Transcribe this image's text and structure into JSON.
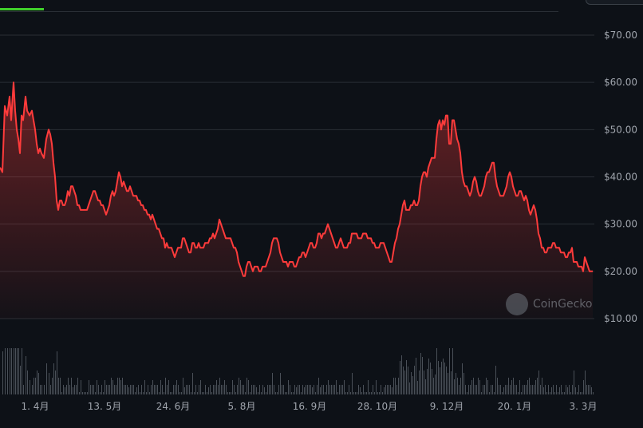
{
  "watermark": {
    "text": "CoinGecko",
    "icon": "coingecko-logo-icon"
  },
  "colors": {
    "line": "#ff3b3b",
    "background": "#0d1117",
    "grid": "#2a2f36",
    "volume": "#4a5058",
    "active_tab": "#3fcf2b"
  },
  "chart_data": {
    "type": "area",
    "ylim": [
      10,
      70
    ],
    "y_ticks": [
      "$70.00",
      "$60.00",
      "$50.00",
      "$40.00",
      "$30.00",
      "$20.00",
      "$10.00"
    ],
    "y_tick_values": [
      70,
      60,
      50,
      40,
      30,
      20,
      10
    ],
    "x_ticks": [
      "1. 4月",
      "13. 5月",
      "24. 6月",
      "5. 8月",
      "16. 9月",
      "28. 10月",
      "9. 12月",
      "20. 1月",
      "3. 3月"
    ],
    "grid": true,
    "price_series": [
      [
        0,
        42
      ],
      [
        3,
        41
      ],
      [
        6,
        55
      ],
      [
        9,
        53
      ],
      [
        12,
        57
      ],
      [
        14,
        52
      ],
      [
        17,
        60
      ],
      [
        19,
        54
      ],
      [
        21,
        50
      ],
      [
        23,
        48
      ],
      [
        25,
        45
      ],
      [
        27,
        53
      ],
      [
        29,
        52
      ],
      [
        32,
        57
      ],
      [
        34,
        54
      ],
      [
        37,
        53
      ],
      [
        40,
        54
      ],
      [
        42,
        52
      ],
      [
        44,
        50
      ],
      [
        46,
        47
      ],
      [
        48,
        45
      ],
      [
        50,
        46
      ],
      [
        52,
        45
      ],
      [
        55,
        44
      ],
      [
        58,
        48
      ],
      [
        61,
        50
      ],
      [
        63,
        49
      ],
      [
        65,
        47
      ],
      [
        67,
        43
      ],
      [
        69,
        40
      ],
      [
        71,
        35
      ],
      [
        73,
        33
      ],
      [
        75,
        35
      ],
      [
        77,
        35
      ],
      [
        79,
        34
      ],
      [
        81,
        34
      ],
      [
        83,
        35
      ],
      [
        85,
        37
      ],
      [
        87,
        36
      ],
      [
        89,
        38
      ],
      [
        91,
        38
      ],
      [
        93,
        37
      ],
      [
        95,
        36
      ],
      [
        97,
        34
      ],
      [
        99,
        34
      ],
      [
        101,
        33
      ],
      [
        103,
        33
      ],
      [
        105,
        33
      ],
      [
        107,
        33
      ],
      [
        109,
        33
      ],
      [
        111,
        34
      ],
      [
        113,
        35
      ],
      [
        115,
        36
      ],
      [
        117,
        37
      ],
      [
        119,
        37
      ],
      [
        121,
        36
      ],
      [
        123,
        35
      ],
      [
        125,
        35
      ],
      [
        127,
        34
      ],
      [
        129,
        34
      ],
      [
        131,
        33
      ],
      [
        133,
        32
      ],
      [
        135,
        33
      ],
      [
        137,
        34
      ],
      [
        139,
        36
      ],
      [
        141,
        37
      ],
      [
        143,
        36
      ],
      [
        145,
        37
      ],
      [
        147,
        39
      ],
      [
        149,
        41
      ],
      [
        151,
        40
      ],
      [
        153,
        38
      ],
      [
        155,
        39
      ],
      [
        157,
        38
      ],
      [
        159,
        37
      ],
      [
        161,
        37
      ],
      [
        163,
        38
      ],
      [
        165,
        37
      ],
      [
        167,
        36
      ],
      [
        169,
        36
      ],
      [
        171,
        36
      ],
      [
        173,
        35
      ],
      [
        175,
        35
      ],
      [
        177,
        34
      ],
      [
        179,
        34
      ],
      [
        181,
        33
      ],
      [
        183,
        33
      ],
      [
        185,
        32
      ],
      [
        187,
        32
      ],
      [
        189,
        31
      ],
      [
        191,
        32
      ],
      [
        193,
        31
      ],
      [
        195,
        30
      ],
      [
        197,
        29
      ],
      [
        199,
        29
      ],
      [
        201,
        28
      ],
      [
        203,
        27
      ],
      [
        205,
        27
      ],
      [
        207,
        25
      ],
      [
        209,
        26
      ],
      [
        211,
        25
      ],
      [
        213,
        25
      ],
      [
        215,
        25
      ],
      [
        217,
        24
      ],
      [
        219,
        23
      ],
      [
        221,
        24
      ],
      [
        223,
        25
      ],
      [
        225,
        25
      ],
      [
        227,
        25
      ],
      [
        229,
        27
      ],
      [
        231,
        27
      ],
      [
        233,
        26
      ],
      [
        235,
        25
      ],
      [
        237,
        24
      ],
      [
        239,
        24
      ],
      [
        241,
        26
      ],
      [
        243,
        26
      ],
      [
        245,
        25
      ],
      [
        247,
        25
      ],
      [
        249,
        26
      ],
      [
        251,
        25
      ],
      [
        253,
        25
      ],
      [
        255,
        25
      ],
      [
        257,
        26
      ],
      [
        259,
        26
      ],
      [
        261,
        26
      ],
      [
        263,
        27
      ],
      [
        265,
        27
      ],
      [
        267,
        28
      ],
      [
        269,
        27
      ],
      [
        271,
        28
      ],
      [
        273,
        29
      ],
      [
        275,
        31
      ],
      [
        277,
        30
      ],
      [
        279,
        29
      ],
      [
        281,
        28
      ],
      [
        283,
        27
      ],
      [
        285,
        27
      ],
      [
        287,
        27
      ],
      [
        289,
        27
      ],
      [
        291,
        26
      ],
      [
        293,
        25
      ],
      [
        295,
        25
      ],
      [
        297,
        24
      ],
      [
        299,
        22
      ],
      [
        301,
        21
      ],
      [
        303,
        20
      ],
      [
        305,
        19
      ],
      [
        307,
        19
      ],
      [
        309,
        21
      ],
      [
        311,
        22
      ],
      [
        313,
        22
      ],
      [
        315,
        21
      ],
      [
        317,
        20
      ],
      [
        319,
        21
      ],
      [
        321,
        21
      ],
      [
        323,
        21
      ],
      [
        325,
        20
      ],
      [
        327,
        20
      ],
      [
        329,
        21
      ],
      [
        331,
        21
      ],
      [
        333,
        21
      ],
      [
        335,
        22
      ],
      [
        337,
        23
      ],
      [
        339,
        24
      ],
      [
        341,
        26
      ],
      [
        343,
        27
      ],
      [
        345,
        27
      ],
      [
        347,
        27
      ],
      [
        349,
        26
      ],
      [
        351,
        24
      ],
      [
        353,
        23
      ],
      [
        355,
        22
      ],
      [
        357,
        22
      ],
      [
        359,
        22
      ],
      [
        361,
        21
      ],
      [
        363,
        22
      ],
      [
        365,
        22
      ],
      [
        367,
        22
      ],
      [
        369,
        21
      ],
      [
        371,
        21
      ],
      [
        373,
        22
      ],
      [
        375,
        23
      ],
      [
        377,
        23
      ],
      [
        379,
        24
      ],
      [
        381,
        24
      ],
      [
        383,
        23
      ],
      [
        385,
        24
      ],
      [
        387,
        25
      ],
      [
        389,
        26
      ],
      [
        391,
        26
      ],
      [
        393,
        25
      ],
      [
        395,
        25
      ],
      [
        397,
        26
      ],
      [
        399,
        28
      ],
      [
        401,
        28
      ],
      [
        403,
        27
      ],
      [
        405,
        28
      ],
      [
        407,
        28
      ],
      [
        409,
        29
      ],
      [
        411,
        30
      ],
      [
        413,
        29
      ],
      [
        415,
        28
      ],
      [
        417,
        27
      ],
      [
        419,
        26
      ],
      [
        421,
        25
      ],
      [
        423,
        25
      ],
      [
        425,
        26
      ],
      [
        427,
        27
      ],
      [
        429,
        26
      ],
      [
        431,
        25
      ],
      [
        433,
        25
      ],
      [
        435,
        25
      ],
      [
        437,
        26
      ],
      [
        439,
        26
      ],
      [
        441,
        28
      ],
      [
        443,
        28
      ],
      [
        445,
        28
      ],
      [
        447,
        28
      ],
      [
        449,
        27
      ],
      [
        451,
        27
      ],
      [
        453,
        27
      ],
      [
        455,
        28
      ],
      [
        457,
        28
      ],
      [
        459,
        28
      ],
      [
        461,
        27
      ],
      [
        463,
        27
      ],
      [
        465,
        27
      ],
      [
        467,
        26
      ],
      [
        469,
        26
      ],
      [
        471,
        25
      ],
      [
        473,
        25
      ],
      [
        475,
        25
      ],
      [
        477,
        26
      ],
      [
        479,
        26
      ],
      [
        481,
        26
      ],
      [
        483,
        25
      ],
      [
        485,
        24
      ],
      [
        487,
        23
      ],
      [
        489,
        22
      ],
      [
        491,
        22
      ],
      [
        493,
        24
      ],
      [
        495,
        26
      ],
      [
        497,
        27
      ],
      [
        499,
        29
      ],
      [
        501,
        30
      ],
      [
        503,
        32
      ],
      [
        505,
        34
      ],
      [
        507,
        35
      ],
      [
        509,
        33
      ],
      [
        511,
        33
      ],
      [
        513,
        33
      ],
      [
        515,
        34
      ],
      [
        517,
        34
      ],
      [
        519,
        35
      ],
      [
        521,
        34
      ],
      [
        523,
        34
      ],
      [
        525,
        35
      ],
      [
        527,
        38
      ],
      [
        529,
        40
      ],
      [
        531,
        41
      ],
      [
        533,
        41
      ],
      [
        535,
        40
      ],
      [
        537,
        42
      ],
      [
        539,
        43
      ],
      [
        541,
        44
      ],
      [
        543,
        44
      ],
      [
        545,
        44
      ],
      [
        547,
        48
      ],
      [
        549,
        51
      ],
      [
        551,
        52
      ],
      [
        553,
        50
      ],
      [
        555,
        52
      ],
      [
        557,
        51
      ],
      [
        559,
        53
      ],
      [
        561,
        53
      ],
      [
        563,
        47
      ],
      [
        565,
        47
      ],
      [
        567,
        52
      ],
      [
        569,
        52
      ],
      [
        571,
        50
      ],
      [
        573,
        48
      ],
      [
        575,
        47
      ],
      [
        577,
        45
      ],
      [
        579,
        41
      ],
      [
        581,
        39
      ],
      [
        583,
        38
      ],
      [
        585,
        38
      ],
      [
        587,
        37
      ],
      [
        589,
        36
      ],
      [
        591,
        37
      ],
      [
        593,
        39
      ],
      [
        595,
        40
      ],
      [
        597,
        39
      ],
      [
        599,
        37
      ],
      [
        601,
        36
      ],
      [
        603,
        36
      ],
      [
        605,
        37
      ],
      [
        607,
        38
      ],
      [
        609,
        40
      ],
      [
        611,
        41
      ],
      [
        613,
        41
      ],
      [
        615,
        42
      ],
      [
        617,
        43
      ],
      [
        619,
        43
      ],
      [
        621,
        40
      ],
      [
        623,
        38
      ],
      [
        625,
        37
      ],
      [
        627,
        36
      ],
      [
        629,
        36
      ],
      [
        631,
        36
      ],
      [
        633,
        37
      ],
      [
        635,
        38
      ],
      [
        637,
        40
      ],
      [
        639,
        41
      ],
      [
        641,
        40
      ],
      [
        643,
        38
      ],
      [
        645,
        37
      ],
      [
        647,
        36
      ],
      [
        649,
        36
      ],
      [
        651,
        37
      ],
      [
        653,
        37
      ],
      [
        655,
        36
      ],
      [
        657,
        35
      ],
      [
        659,
        36
      ],
      [
        661,
        35
      ],
      [
        663,
        33
      ],
      [
        665,
        32
      ],
      [
        667,
        33
      ],
      [
        669,
        34
      ],
      [
        671,
        33
      ],
      [
        673,
        31
      ],
      [
        675,
        28
      ],
      [
        677,
        27
      ],
      [
        679,
        25
      ],
      [
        681,
        25
      ],
      [
        683,
        24
      ],
      [
        685,
        24
      ],
      [
        687,
        25
      ],
      [
        689,
        25
      ],
      [
        691,
        25
      ],
      [
        693,
        26
      ],
      [
        695,
        26
      ],
      [
        697,
        25
      ],
      [
        699,
        25
      ],
      [
        701,
        25
      ],
      [
        703,
        24
      ],
      [
        705,
        24
      ],
      [
        707,
        24
      ],
      [
        709,
        23
      ],
      [
        711,
        23
      ],
      [
        713,
        24
      ],
      [
        715,
        24
      ],
      [
        717,
        25
      ],
      [
        719,
        22
      ],
      [
        721,
        22
      ],
      [
        723,
        22
      ],
      [
        725,
        21
      ],
      [
        727,
        21
      ],
      [
        729,
        21
      ],
      [
        731,
        20
      ],
      [
        733,
        23
      ],
      [
        735,
        22
      ],
      [
        737,
        21
      ],
      [
        739,
        20
      ],
      [
        741,
        20
      ],
      [
        743,
        20
      ]
    ]
  }
}
